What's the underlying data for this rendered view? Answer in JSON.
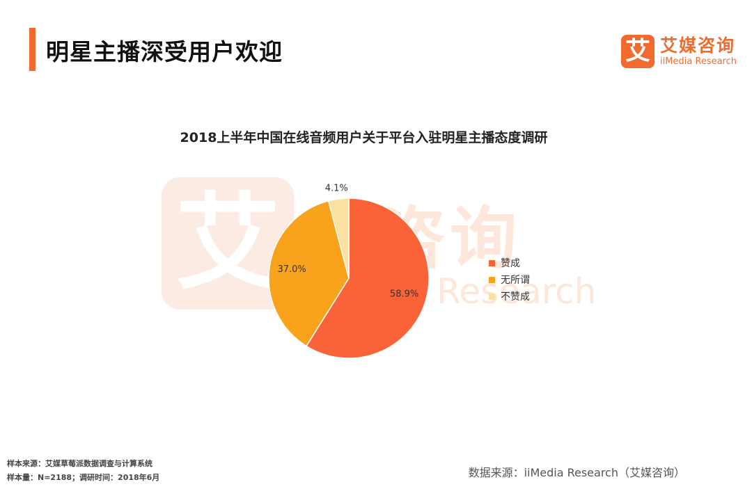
{
  "header": {
    "title": "明星主播深受用户欢迎",
    "logo_mark": "艾",
    "logo_cn": "艾媒咨询",
    "logo_en": "iiMedia Research"
  },
  "watermark": {
    "mark": "艾",
    "cn": "媒咨询",
    "en": "Research"
  },
  "chart_data": {
    "type": "pie",
    "title": "2018上半年中国在线音频用户关于平台入驻明星主播态度调研",
    "slices": [
      {
        "label": "赞成",
        "value": 58.9,
        "display": "58.9%",
        "color": "#f96337"
      },
      {
        "label": "无所谓",
        "value": 37.0,
        "display": "37.0%",
        "color": "#f9a21b"
      },
      {
        "label": "不赞成",
        "value": 4.1,
        "display": "4.1%",
        "color": "#fce0a0"
      }
    ],
    "legend_position": "right"
  },
  "footer": {
    "sample_source": "样本来源：艾媒草莓派数据调查与计算系统",
    "sample_size": "样本量：N=2188；调研时间：2018年6月",
    "data_source": "数据来源：iiMedia Research（艾媒咨询）"
  }
}
